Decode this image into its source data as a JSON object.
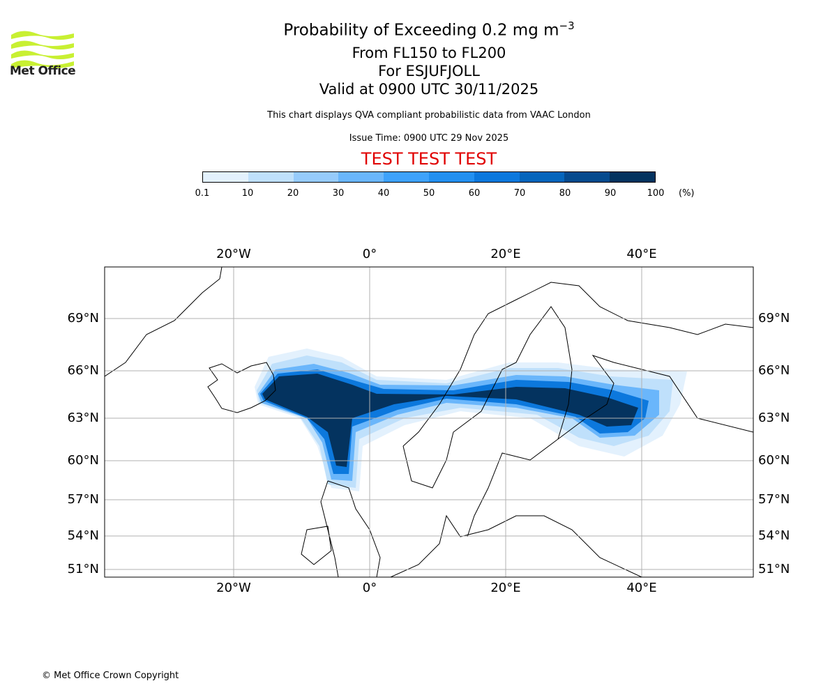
{
  "logo": {
    "text": "Met Office"
  },
  "title": "Probability of Exceeding 0.2 mg m",
  "title_superscript": "−3",
  "subtitles": [
    "From FL150 to FL200",
    "For ESJUFJOLL",
    "Valid at 0900 UTC 30/11/2025"
  ],
  "description": "This chart displays QVA compliant probabilistic data from VAAC London",
  "issue_time": "Issue Time: 0900 UTC 29 Nov 2025",
  "test_banner": "TEST TEST TEST",
  "colorbar": {
    "labels": [
      "0.1",
      "10",
      "20",
      "30",
      "40",
      "50",
      "60",
      "70",
      "80",
      "90",
      "100"
    ],
    "unit": "(%)",
    "colors": [
      "#e3f1fd",
      "#bfe0fb",
      "#96cbfb",
      "#6ab6fb",
      "#3ea2fb",
      "#2390f0",
      "#0c78dd",
      "#0565bc",
      "#054a8e",
      "#04335f"
    ]
  },
  "chart_data": {
    "type": "heatmap",
    "title": "Probability of Exceeding 0.2 mg m-3",
    "lon_ticks": [
      "20°W",
      "0°",
      "20°E",
      "40°E"
    ],
    "lat_ticks": [
      "69°N",
      "66°N",
      "63°N",
      "60°N",
      "57°N",
      "54°N",
      "51°N"
    ],
    "lon_range": [
      -39,
      56
    ],
    "lat_range": [
      50.5,
      71.5
    ],
    "grid": true,
    "description_of_field": "plume from Iceland eastward over Norway/Sweden/Finland to Russia near 63-65N, with branch south to Scotland"
  },
  "copyright": "© Met Office Crown Copyright"
}
